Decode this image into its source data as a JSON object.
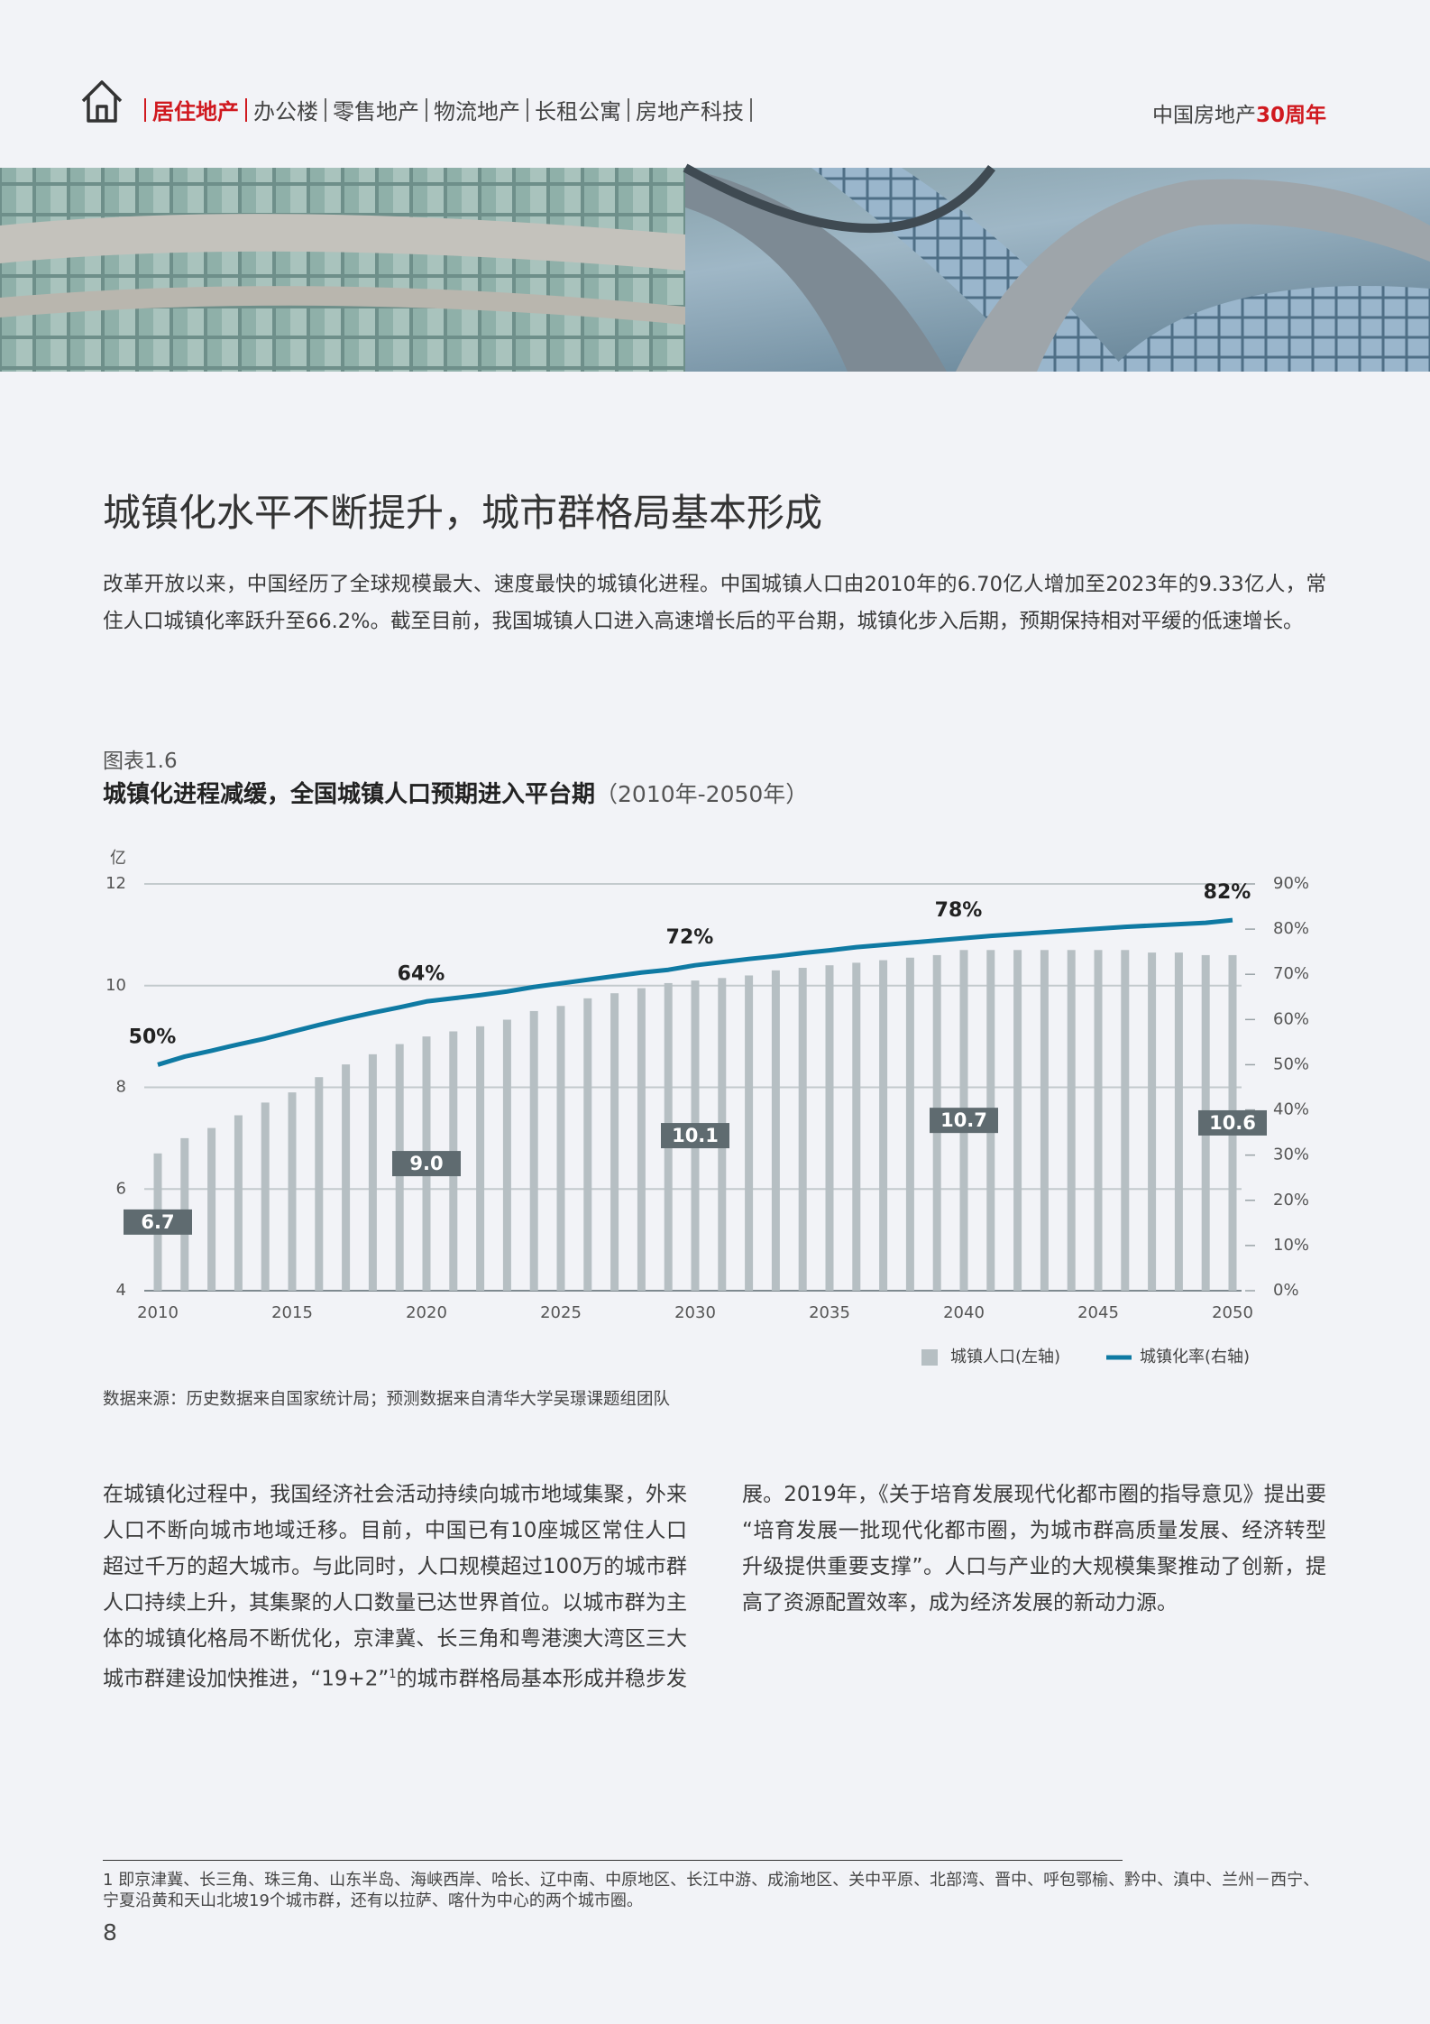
{
  "header": {
    "nav": [
      "居住地产",
      "办公楼",
      "零售地产",
      "物流地产",
      "长租公寓",
      "房地产科技"
    ],
    "brand": "中国房地产",
    "brand_highlight": "30周年"
  },
  "article": {
    "title": "城镇化水平不断提升，城市群格局基本形成",
    "intro": "改革开放以来，中国经历了全球规模最大、速度最快的城镇化进程。中国城镇人口由2010年的6.70亿人增加至2023年的9.33亿人，常住人口城镇化率跃升至66.2%。截至目前，我国城镇人口进入高速增长后的平台期，城镇化步入后期，预期保持相对平缓的低速增长。",
    "body_before_ref": "在城镇化过程中，我国经济社会活动持续向城市地域集聚，外来人口不断向城市地域迁移。目前，中国已有10座城区常住人口超过千万的超大城市。与此同时，人口规模超过100万的城市群人口持续上升，其集聚的人口数量已达世界首位。以城市群为主体的城镇化格局不断优化，京津冀、长三角和粤港澳大湾区三大城市群建设加快推进，“19+2”",
    "body_ref": "1",
    "body_after_ref": "的城市群格局基本形成并稳步发展。2019年，《关于培育发展现代化都市圈的指导意见》提出要“培育发展一批现代化都市圈，为城市群高质量发展、经济转型升级提供重要支撑”。人口与产业的大规模集聚推动了创新，提高了资源配置效率，成为经济发展的新动力源。"
  },
  "chart_data": {
    "type": "combo",
    "figure_label": "图表1.6",
    "title": "城镇化进程减缓，全国城镇人口预期进入平台期",
    "subtitle": "（2010年-2050年）",
    "y_label": "亿",
    "source": "数据来源：历史数据来自国家统计局；预测数据来自清华大学吴璟课题组团队",
    "x": [
      2010,
      2011,
      2012,
      2013,
      2014,
      2015,
      2016,
      2017,
      2018,
      2019,
      2020,
      2021,
      2022,
      2023,
      2024,
      2025,
      2026,
      2027,
      2028,
      2029,
      2030,
      2031,
      2032,
      2033,
      2034,
      2035,
      2036,
      2037,
      2038,
      2039,
      2040,
      2041,
      2042,
      2043,
      2044,
      2045,
      2046,
      2047,
      2048,
      2049,
      2050
    ],
    "xlim": [
      2010,
      2050
    ],
    "xticks": [
      2010,
      2015,
      2020,
      2025,
      2030,
      2035,
      2040,
      2045,
      2050
    ],
    "ylim": [
      4,
      12
    ],
    "yticks": [
      4,
      6,
      8,
      10,
      12
    ],
    "y2lim": [
      0,
      90
    ],
    "y2ticks": [
      {
        "value": 0,
        "label": "0%"
      },
      {
        "value": 10,
        "label": "10%"
      },
      {
        "value": 20,
        "label": "20%"
      },
      {
        "value": 30,
        "label": "30%"
      },
      {
        "value": 40,
        "label": "40%"
      },
      {
        "value": 50,
        "label": "50%"
      },
      {
        "value": 60,
        "label": "60%"
      },
      {
        "value": 70,
        "label": "70%"
      },
      {
        "value": 80,
        "label": "80%"
      },
      {
        "value": 90,
        "label": "90%"
      }
    ],
    "grid": true,
    "legend": "bottom-right",
    "series": [
      {
        "name": "城镇人口(左轴)",
        "type": "bar",
        "color": "#b6bfc3",
        "values": [
          6.7,
          7.0,
          7.2,
          7.45,
          7.7,
          7.9,
          8.2,
          8.45,
          8.65,
          8.85,
          9.0,
          9.1,
          9.2,
          9.33,
          9.5,
          9.6,
          9.75,
          9.85,
          9.95,
          10.05,
          10.1,
          10.15,
          10.2,
          10.3,
          10.35,
          10.4,
          10.45,
          10.5,
          10.55,
          10.6,
          10.7,
          10.7,
          10.7,
          10.7,
          10.7,
          10.7,
          10.7,
          10.65,
          10.65,
          10.6,
          10.6
        ],
        "value_labels": [
          "6.7",
          null,
          null,
          null,
          null,
          null,
          null,
          null,
          null,
          null,
          "9.0",
          null,
          null,
          null,
          null,
          null,
          null,
          null,
          null,
          null,
          "10.1",
          null,
          null,
          null,
          null,
          null,
          null,
          null,
          null,
          null,
          "10.7",
          null,
          null,
          null,
          null,
          null,
          null,
          null,
          null,
          null,
          "10.6"
        ]
      },
      {
        "name": "城镇化率(右轴)",
        "type": "line",
        "axis": "y2",
        "color": "#0f7aa3",
        "values": [
          50,
          51.8,
          53.1,
          54.5,
          55.8,
          57.3,
          58.8,
          60.2,
          61.5,
          62.7,
          64,
          64.7,
          65.4,
          66.2,
          67.2,
          68,
          68.8,
          69.6,
          70.4,
          71,
          72,
          72.7,
          73.4,
          74,
          74.7,
          75.3,
          76,
          76.5,
          77,
          77.5,
          78,
          78.5,
          78.9,
          79.3,
          79.7,
          80.1,
          80.5,
          80.8,
          81.1,
          81.4,
          82
        ],
        "value_labels": [
          "50%",
          null,
          null,
          null,
          null,
          null,
          null,
          null,
          null,
          null,
          "64%",
          null,
          null,
          null,
          null,
          null,
          null,
          null,
          null,
          null,
          "72%",
          null,
          null,
          null,
          null,
          null,
          null,
          null,
          null,
          null,
          "78%",
          null,
          null,
          null,
          null,
          null,
          null,
          null,
          null,
          null,
          "82%"
        ]
      }
    ]
  },
  "footnote": {
    "number": "1",
    "text": "即京津冀、长三角、珠三角、山东半岛、海峡西岸、哈长、辽中南、中原地区、长江中游、成渝地区、关中平原、北部湾、晋中、呼包鄂榆、黔中、滇中、兰州－西宁、宁夏沿黄和天山北坡19个城市群，还有以拉萨、喀什为中心的两个城市圈。"
  },
  "page_number": "8"
}
